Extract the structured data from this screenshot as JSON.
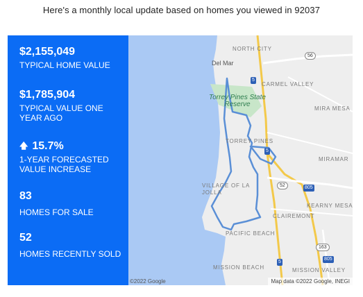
{
  "headline": "Here's a monthly local update based on homes you viewed in 92037",
  "stats": {
    "typical_value": "$2,155,049",
    "typical_value_label": "TYPICAL HOME VALUE",
    "year_ago_value": "$1,785,904",
    "year_ago_label": "TYPICAL VALUE ONE YEAR AGO",
    "forecast_arrow_icon": "up-arrow-icon",
    "forecast_value": "15.7%",
    "forecast_label": "1-YEAR FORECASTED VALUE INCREASE",
    "for_sale_value": "83",
    "for_sale_label": "HOMES FOR SALE",
    "recently_sold_value": "52",
    "recently_sold_label": "HOMES RECENTLY SOLD"
  },
  "map": {
    "labels": {
      "north_city": "NORTH CITY",
      "del_mar": "Del Mar",
      "carmel_valley": "CARMEL VALLEY",
      "torrey_pines_park": "Torrey Pines State Reserve",
      "mira_mesa": "MIRA MESA",
      "torrey_pines": "TORREY PINES",
      "miramar": "MIRAMAR",
      "village_of_la_jolla": "VILLAGE OF LA JOLLA",
      "kearny_mesa": "KEARNY MESA",
      "clairemont": "CLAIREMONT",
      "pacific_beach": "PACIFIC BEACH",
      "mission_beach": "MISSION BEACH",
      "mission_valley": "MISSION VALLEY"
    },
    "shields": {
      "i5_north": "5",
      "i5_mid": "5",
      "i5_south": "5",
      "i805_a": "805",
      "i805_b": "805",
      "sr56": "56",
      "sr52": "52",
      "sr163": "163"
    },
    "credit_left": "©2022 Google",
    "credit_right": "Map data ©2022 Google, INEGI",
    "colors": {
      "ocean": "#aac9f4",
      "land": "#eeeeee",
      "park": "#c8e6c9",
      "boundary": "#5a8fd6",
      "highway": "#f3c94a"
    }
  }
}
